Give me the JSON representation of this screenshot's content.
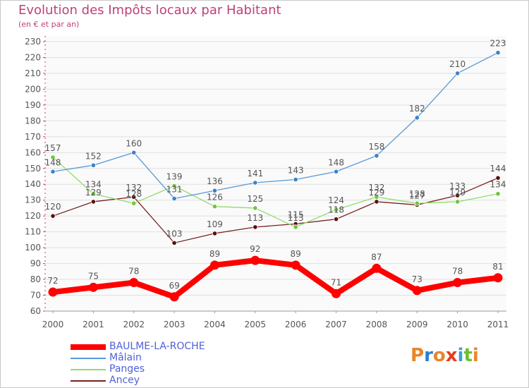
{
  "title": "Evolution des Impôts locaux par Habitant",
  "subtitle": "(en € et par an)",
  "logo": {
    "text": "Proxiti",
    "letter_colors": [
      "#e8862a",
      "#2d7fcf",
      "#e8862a",
      "#e83a1e",
      "#3aa0d8",
      "#6fbf2d",
      "#e8862a"
    ]
  },
  "chart_data": {
    "type": "line",
    "title": "Evolution des Impôts locaux par Habitant",
    "subtitle": "(en € et par an)",
    "x": [
      "2000",
      "2001",
      "2002",
      "2003",
      "2004",
      "2005",
      "2006",
      "2007",
      "2008",
      "2009",
      "2010",
      "2011"
    ],
    "ylim": [
      60,
      230
    ],
    "yticks": [
      60,
      70,
      80,
      90,
      100,
      110,
      120,
      130,
      140,
      150,
      160,
      170,
      180,
      190,
      200,
      210,
      220,
      230
    ],
    "grid": "horizontal",
    "legend_position": "bottom-left",
    "series": [
      {
        "name": "Ancey",
        "color": "#7a2020",
        "marker": "#5a0f0f",
        "values": [
          120,
          129,
          132,
          103,
          109,
          113,
          115,
          118,
          129,
          127,
          133,
          144
        ]
      },
      {
        "name": "Panges",
        "color": "#90dc6a",
        "marker": "#6ec63c",
        "values": [
          157,
          134,
          128,
          139,
          126,
          125,
          113,
          124,
          132,
          128,
          129,
          134
        ]
      },
      {
        "name": "Mâlain",
        "color": "#5599d8",
        "marker": "#3c82c8",
        "values": [
          148,
          152,
          160,
          131,
          136,
          141,
          143,
          148,
          158,
          182,
          210,
          223
        ]
      },
      {
        "name": "BAULME-LA-ROCHE",
        "color": "#ff0000",
        "marker": "#ff0000",
        "values": [
          72,
          75,
          78,
          69,
          89,
          92,
          89,
          71,
          87,
          73,
          78,
          81
        ]
      }
    ]
  }
}
